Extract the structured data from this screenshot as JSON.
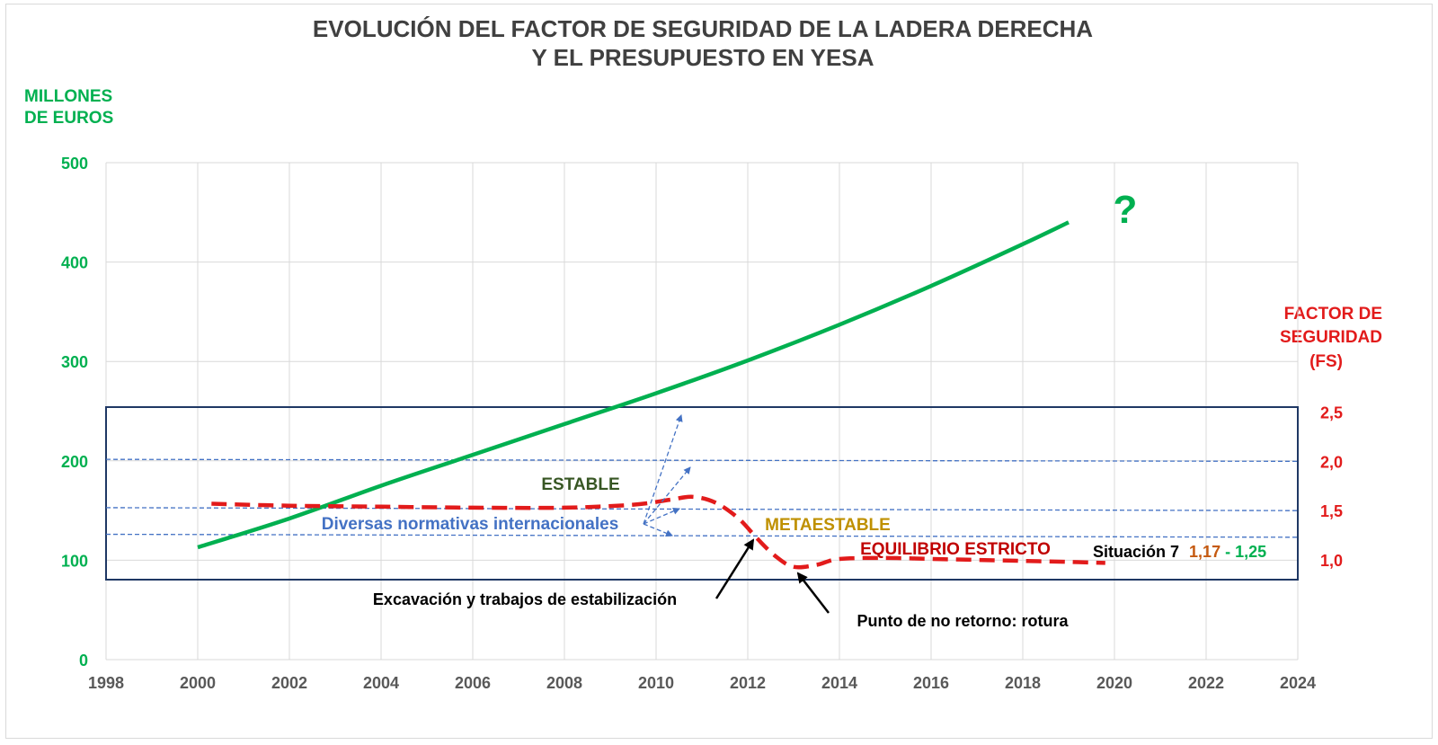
{
  "chart_data": {
    "type": "line",
    "title_line1": "EVOLUCIÓN DEL FACTOR DE SEGURIDAD DE LA LADERA DERECHA",
    "title_line2": "Y EL PRESUPUESTO EN YESA",
    "ylabel_left": [
      "MILLONES",
      "DE EUROS"
    ],
    "ylabel_right": [
      "FACTOR DE",
      "SEGURIDAD",
      "(FS)"
    ],
    "x_ticks": [
      1998,
      2000,
      2002,
      2004,
      2006,
      2008,
      2010,
      2012,
      2014,
      2016,
      2018,
      2020,
      2022,
      2024
    ],
    "xlim": [
      1998,
      2024
    ],
    "y_left_ticks": [
      0,
      100,
      200,
      300,
      400,
      500
    ],
    "ylim_left": [
      0,
      500
    ],
    "y_right_ticks": [
      "1,0",
      "1,5",
      "2,0",
      "2,5"
    ],
    "y_right_values": [
      1.0,
      1.5,
      2.0,
      2.5
    ],
    "ylim_right": [
      0.8,
      2.55
    ],
    "grid": true,
    "series": [
      {
        "axis": "left",
        "color": "#00b050",
        "style": "solid",
        "x": [
          2000,
          2002,
          2004,
          2006,
          2008,
          2010,
          2012,
          2014,
          2016,
          2018,
          2019
        ],
        "y": [
          113,
          142,
          175,
          206,
          237,
          268,
          301,
          337,
          376,
          418,
          440
        ]
      },
      {
        "axis": "right",
        "color": "#e21b1b",
        "style": "dashed",
        "x": [
          2000.3,
          2002,
          2004,
          2006,
          2008,
          2009.5,
          2010.3,
          2010.8,
          2011.3,
          2011.8,
          2012.2,
          2012.6,
          2013,
          2013.5,
          2014,
          2015,
          2016,
          2017,
          2018,
          2019,
          2019.8
        ],
        "y": [
          1.57,
          1.55,
          1.54,
          1.53,
          1.53,
          1.56,
          1.61,
          1.64,
          1.58,
          1.42,
          1.22,
          1.04,
          0.93,
          0.95,
          1.01,
          1.02,
          1.01,
          1.0,
          0.99,
          0.98,
          0.97
        ]
      }
    ],
    "reference_lines": [
      {
        "axis": "right",
        "y_start": 2.02,
        "y_end": 2.0
      },
      {
        "axis": "right",
        "y_start": 1.53,
        "y_end": 1.5
      },
      {
        "axis": "right",
        "y_start": 1.26,
        "y_end": 1.23
      }
    ],
    "fs_box": {
      "axis": "right",
      "x": [
        1998,
        2024
      ],
      "y": [
        0.8,
        2.55
      ]
    },
    "annotations": {
      "question": "?",
      "estable": "ESTABLE",
      "metaestable": "METAESTABLE",
      "equilibrio": "EQUILIBRIO ESTRICTO",
      "normativas": "Diversas normativas internacionales",
      "excavacion": "Excavación y trabajos de estabilización",
      "punto": "Punto de no retorno: rotura",
      "situacion": "Situación 7",
      "sit_val1": "1,17",
      "sit_dash": "-",
      "sit_val2": "1,25"
    },
    "colors": {
      "green": "#00b050",
      "red": "#e21b1b",
      "darkred": "#c00000",
      "navy": "#1f3864",
      "blue": "#4472c4",
      "darkgreen": "#375623",
      "gold": "#bf9000",
      "brown": "#c55a11",
      "grid": "#d9d9d9",
      "tick_gray": "#595959"
    }
  }
}
